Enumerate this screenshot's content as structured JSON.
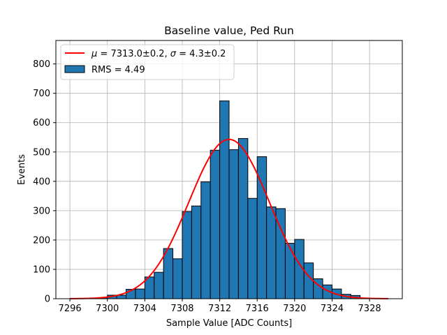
{
  "chart_data": {
    "type": "bar",
    "title": "Baseline value, Ped Run",
    "xlabel": "Sample Value [ADC Counts]",
    "ylabel": "Events",
    "xlim": [
      7294.5,
      7331.5
    ],
    "ylim": [
      0,
      880
    ],
    "xticks": [
      7296,
      7300,
      7304,
      7308,
      7312,
      7316,
      7320,
      7324,
      7328
    ],
    "yticks": [
      0,
      100,
      200,
      300,
      400,
      500,
      600,
      700,
      800
    ],
    "xtick_labels": [
      "7296",
      "7300",
      "7304",
      "7308",
      "7312",
      "7316",
      "7320",
      "7324",
      "7328"
    ],
    "ytick_labels": [
      "0",
      "100",
      "200",
      "300",
      "400",
      "500",
      "600",
      "700",
      "800"
    ],
    "grid": true,
    "legend_position": "top-left",
    "histogram": {
      "name": "RMS = 4.49",
      "bin_width": 1,
      "bin_starts": [
        7298,
        7299,
        7300,
        7301,
        7302,
        7303,
        7304,
        7305,
        7306,
        7307,
        7308,
        7309,
        7310,
        7311,
        7312,
        7313,
        7314,
        7315,
        7316,
        7317,
        7318,
        7319,
        7320,
        7321,
        7322,
        7323,
        7324,
        7325,
        7326
      ],
      "values": [
        1,
        3,
        12,
        12,
        32,
        33,
        74,
        90,
        171,
        136,
        297,
        316,
        398,
        506,
        674,
        508,
        546,
        342,
        484,
        313,
        307,
        189,
        202,
        122,
        68,
        47,
        33,
        15,
        11
      ],
      "color": "#1f77b4",
      "edge_color": "#000000"
    },
    "fit": {
      "name": "$\\mu = 7313.0 \\pm 0.2$, $\\sigma = 4.3 \\pm 0.2$",
      "label_mu": "μ",
      "label_mu_value": " = 7313.0±0.2, ",
      "label_sigma": "σ",
      "label_sigma_value": " = 4.3±0.2",
      "mu": 7313.0,
      "sigma": 4.3,
      "amplitude": 543,
      "x_range": [
        7296,
        7330
      ],
      "color": "#ff0000"
    }
  }
}
